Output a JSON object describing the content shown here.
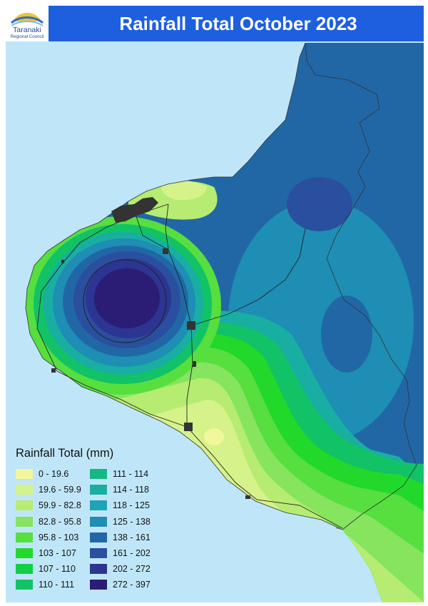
{
  "title": "Rainfall Total October 2023",
  "logo": {
    "name": "Taranaki",
    "subtitle": "Regional Council"
  },
  "legend": {
    "title": "Rainfall Total (mm)",
    "items": [
      {
        "label": "0 - 19.6",
        "color": "#f3f79b"
      },
      {
        "label": "19.6 - 59.9",
        "color": "#d6f28a"
      },
      {
        "label": "59.9 - 82.8",
        "color": "#b6ec72"
      },
      {
        "label": "82.8 - 95.8",
        "color": "#86e45e"
      },
      {
        "label": "95.8 - 103",
        "color": "#56df3e"
      },
      {
        "label": "103 - 107",
        "color": "#22d82a"
      },
      {
        "label": "107 - 110",
        "color": "#10d048"
      },
      {
        "label": "110 - 111",
        "color": "#12c267"
      },
      {
        "label": "111 - 114",
        "color": "#16b784"
      },
      {
        "label": "114 - 118",
        "color": "#19aea2"
      },
      {
        "label": "118 - 125",
        "color": "#1ea4b8"
      },
      {
        "label": "125 - 138",
        "color": "#1e8eb4"
      },
      {
        "label": "138 - 161",
        "color": "#2167a6"
      },
      {
        "label": "161 - 202",
        "color": "#2a4f9e"
      },
      {
        "label": "202 - 272",
        "color": "#2c3591"
      },
      {
        "label": "272 - 397",
        "color": "#2b1c75"
      }
    ]
  },
  "colors": {
    "sea": "#bfe6f8",
    "land": "#7f7f7f",
    "header": "#1e5fe0",
    "urban": "#333333"
  }
}
